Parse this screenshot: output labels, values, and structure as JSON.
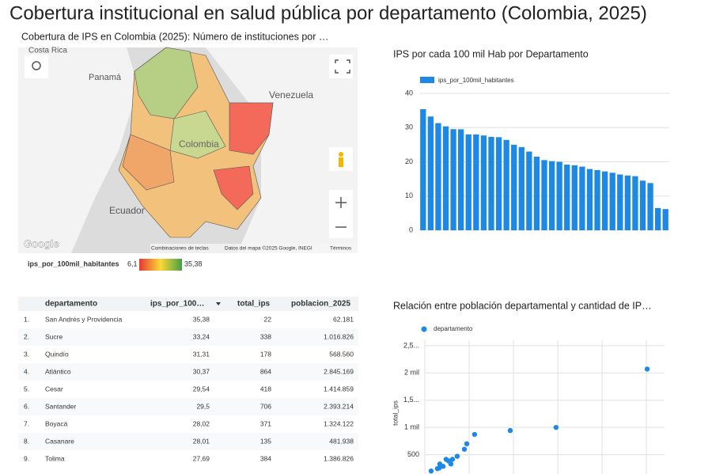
{
  "title": "Cobertura institucional en salud pública por departamento (Colombia, 2025)",
  "map": {
    "title": "Cobertura de IPS en Colombia (2025): Número de instituciones por …",
    "place_labels": [
      "Costa Rica",
      "Panamá",
      "Venezuela",
      "Colombia",
      "Ecuador"
    ],
    "logo": "Google",
    "footer": [
      "Combinaciones de teclas",
      "Datos del mapa ©2025 Google, INEGI",
      "Términos"
    ],
    "legend": {
      "name": "ips_por_100mil_habitantes",
      "min": "6,1",
      "max": "35,38"
    }
  },
  "table": {
    "headers": [
      "departamento",
      "ips_por_100…",
      "total_ips",
      "poblacion_2025"
    ],
    "rows": [
      [
        "1.",
        "San Andrés y Providencia",
        "35,38",
        "22",
        "62.181"
      ],
      [
        "2.",
        "Sucre",
        "33,24",
        "338",
        "1.016.826"
      ],
      [
        "3.",
        "Quindío",
        "31,31",
        "178",
        "568.560"
      ],
      [
        "4.",
        "Atlántico",
        "30,37",
        "864",
        "2.845.169"
      ],
      [
        "5.",
        "Cesar",
        "29,54",
        "418",
        "1.414.859"
      ],
      [
        "6.",
        "Santander",
        "29,5",
        "706",
        "2.393.214"
      ],
      [
        "7.",
        "Boyacá",
        "28,02",
        "371",
        "1.324.122"
      ],
      [
        "8.",
        "Casanare",
        "28,01",
        "135",
        "481.938"
      ],
      [
        "9.",
        "Tolima",
        "27,69",
        "384",
        "1.386.826"
      ]
    ]
  },
  "chart_data": [
    {
      "type": "bar",
      "title": "IPS por cada 100 mil Hab por Departamento",
      "series": [
        {
          "name": "ips_por_100mil_habitantes",
          "color": "#1e88e5",
          "values": [
            35.38,
            33.24,
            31.31,
            30.37,
            29.54,
            29.5,
            28.02,
            28.01,
            27.69,
            27.3,
            27.2,
            26.4,
            25,
            24.3,
            23,
            21.5,
            20.5,
            20.2,
            20,
            19.2,
            19,
            18.6,
            17.9,
            17.6,
            17.2,
            16.8,
            16.3,
            16,
            15.8,
            14.5,
            13.8,
            6.5,
            6.2
          ]
        }
      ],
      "ylim": [
        0,
        40
      ],
      "yticks": [
        0,
        10,
        20,
        30,
        40
      ],
      "grid": true,
      "legend": "top-left"
    },
    {
      "type": "scatter",
      "title": "Relación entre población departamental y cantidad de IP…",
      "ylabel": "total_ips",
      "series": [
        {
          "name": "departamento",
          "color": "#1e88e5",
          "x": [
            7420000,
            4380000,
            2850000,
            1660000,
            1400000,
            1320000,
            1080000,
            920000,
            790000,
            710000,
            870000,
            610000,
            480000,
            500000,
            420000,
            210000
          ],
          "values": [
            2071,
            1000,
            943,
            871,
            700,
            600,
            471,
            414,
            386,
            414,
            329,
            286,
            257,
            329,
            243,
            200
          ]
        }
      ],
      "xlim": [
        0,
        8000000
      ],
      "ylim": [
        0,
        2600
      ],
      "yticks": [
        500,
        {
          "value": 1000,
          "label": "1 mil"
        },
        {
          "value": 1500,
          "label": "1,5..."
        },
        {
          "value": 2000,
          "label": "2 mil"
        },
        {
          "value": 2500,
          "label": "2,5..."
        }
      ],
      "grid": true,
      "legend": "top-left"
    }
  ]
}
